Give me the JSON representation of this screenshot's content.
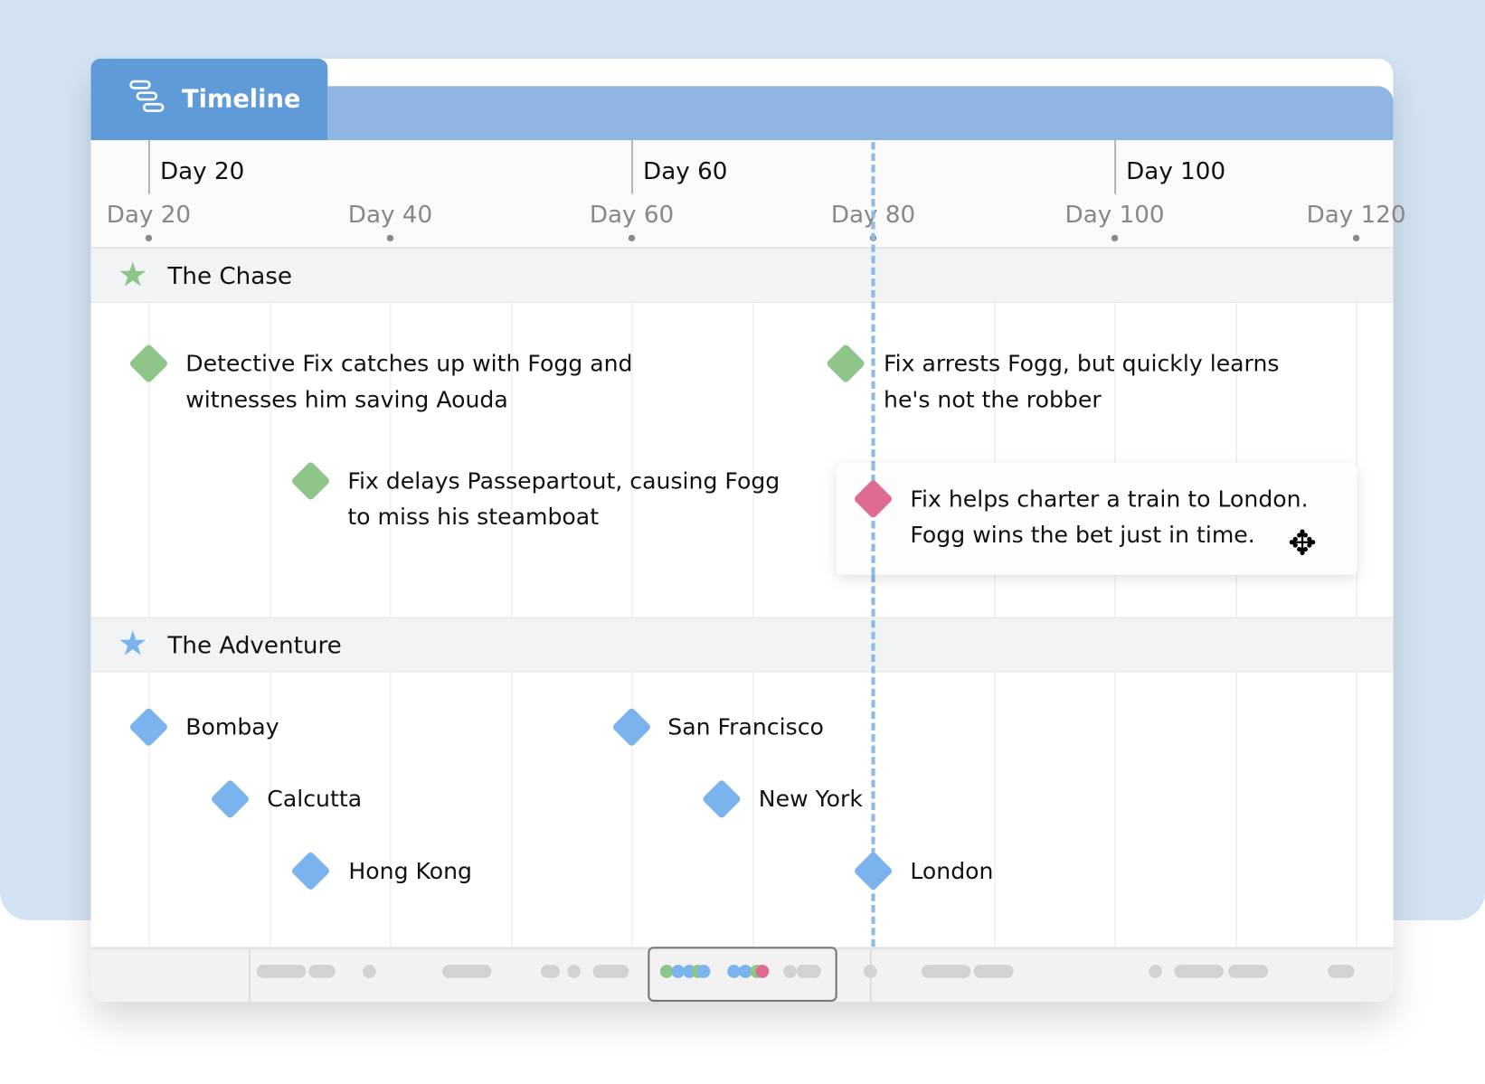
{
  "tab": {
    "label": "Timeline",
    "icon": "timeline-icon"
  },
  "axis": {
    "upper": [
      "Day 20",
      "Day 60",
      "Day 100"
    ],
    "lower": [
      "Day 20",
      "Day 40",
      "Day 60",
      "Day 80",
      "Day 100",
      "Day 120"
    ]
  },
  "groups": [
    {
      "title": "The Chase",
      "icon": "star-icon",
      "color": "#8ec68a",
      "events": [
        {
          "lines": [
            "Detective Fix catches up with Fogg and",
            "witnesses him saving Aouda"
          ]
        },
        {
          "lines": [
            "Fix delays Passepartout, causing Fogg",
            "to miss his steamboat"
          ]
        },
        {
          "lines": [
            "Fix arrests Fogg, but quickly learns",
            "he's not the robber"
          ]
        },
        {
          "lines": [
            "Fix helps charter a train to London.",
            "Fogg wins the bet just in time."
          ],
          "color": "#e06b92",
          "selected": true
        }
      ]
    },
    {
      "title": "The Adventure",
      "icon": "star-icon",
      "color": "#7ab3ee",
      "events": [
        {
          "label": "Bombay"
        },
        {
          "label": "Calcutta"
        },
        {
          "label": "Hong Kong"
        },
        {
          "label": "San Francisco"
        },
        {
          "label": "New York"
        },
        {
          "label": "London"
        }
      ]
    }
  ],
  "colors": {
    "tab": "#5f9bd9",
    "header": "#8fb5e2",
    "today_line": "#8dbcec",
    "green": "#8ec68a",
    "blue": "#7ab3ee",
    "pink": "#e06b92"
  }
}
